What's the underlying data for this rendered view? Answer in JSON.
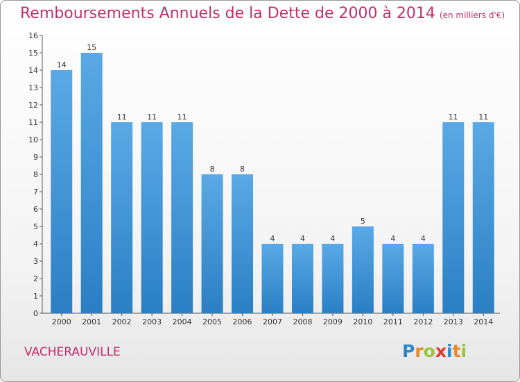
{
  "title": "Remboursements Annuels de la Dette de 2000 à 2014",
  "subtitle": "(en milliers d'€)",
  "commune": "VACHERAUVILLE",
  "logo": "Proxiti",
  "colors": {
    "title": "#c0306a",
    "bar_top": "#5aa9e6",
    "bar_bottom": "#2a7fc4"
  },
  "chart_data": {
    "type": "bar",
    "categories": [
      "2000",
      "2001",
      "2002",
      "2003",
      "2004",
      "2005",
      "2006",
      "2007",
      "2008",
      "2009",
      "2010",
      "2011",
      "2012",
      "2013",
      "2014"
    ],
    "values": [
      14,
      15,
      11,
      11,
      11,
      8,
      8,
      4,
      4,
      4,
      5,
      4,
      4,
      11,
      11
    ],
    "ylim": [
      0,
      16
    ],
    "yticks": [
      0,
      1,
      2,
      3,
      4,
      5,
      6,
      7,
      8,
      9,
      10,
      11,
      12,
      13,
      14,
      15,
      16
    ],
    "grid": false,
    "data_labels": true
  }
}
